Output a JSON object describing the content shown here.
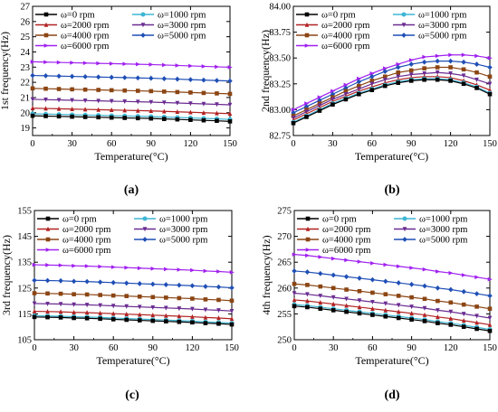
{
  "legend_entries": [
    "ω=0 rpm",
    "ω=1000 rpm",
    "ω=2000 rpm",
    "ω=3000 rpm",
    "ω=4000 rpm",
    "ω=5000 rpm",
    "ω=6000 rpm"
  ],
  "series_styles": [
    {
      "color": "#000000",
      "marker": "square"
    },
    {
      "color": "#3fb6d4",
      "marker": "circle"
    },
    {
      "color": "#b22222",
      "marker": "triangle-up"
    },
    {
      "color": "#6a2c91",
      "marker": "triangle-down"
    },
    {
      "color": "#8b4513",
      "marker": "square"
    },
    {
      "color": "#1f4fb5",
      "marker": "diamond"
    },
    {
      "color": "#a020f0",
      "marker": "triangle-right"
    }
  ],
  "chart_data": [
    {
      "type": "line",
      "panel_label": "(a)",
      "xlabel": "Temperature(°C)",
      "ylabel": "1st frequency(Hz)",
      "xlim": [
        0,
        150
      ],
      "ylim": [
        18.5,
        27
      ],
      "xticks": [
        0,
        30,
        60,
        90,
        120,
        150
      ],
      "yticks": [
        19,
        20,
        21,
        22,
        23,
        24,
        25,
        26,
        27
      ],
      "legend_position": "top",
      "x": [
        0,
        10,
        20,
        30,
        40,
        50,
        60,
        70,
        80,
        90,
        100,
        110,
        120,
        130,
        140,
        150
      ],
      "series": [
        {
          "name": "ω=0 rpm",
          "values": [
            19.8,
            19.78,
            19.76,
            19.74,
            19.72,
            19.7,
            19.68,
            19.66,
            19.64,
            19.62,
            19.59,
            19.56,
            19.53,
            19.5,
            19.47,
            19.43
          ]
        },
        {
          "name": "ω=1000 rpm",
          "values": [
            19.93,
            19.91,
            19.89,
            19.87,
            19.85,
            19.83,
            19.81,
            19.79,
            19.77,
            19.75,
            19.72,
            19.69,
            19.66,
            19.63,
            19.6,
            19.56
          ]
        },
        {
          "name": "ω=2000 rpm",
          "values": [
            20.3,
            20.28,
            20.26,
            20.24,
            20.22,
            20.2,
            20.18,
            20.16,
            20.14,
            20.12,
            20.09,
            20.06,
            20.03,
            20.0,
            19.97,
            19.94
          ]
        },
        {
          "name": "ω=3000 rpm",
          "values": [
            20.88,
            20.86,
            20.84,
            20.82,
            20.8,
            20.78,
            20.76,
            20.74,
            20.72,
            20.7,
            20.67,
            20.64,
            20.61,
            20.58,
            20.55,
            20.52
          ]
        },
        {
          "name": "ω=4000 rpm",
          "values": [
            21.6,
            21.58,
            21.56,
            21.54,
            21.52,
            21.5,
            21.48,
            21.46,
            21.44,
            21.42,
            21.39,
            21.36,
            21.33,
            21.3,
            21.27,
            21.24
          ]
        },
        {
          "name": "ω=5000 rpm",
          "values": [
            22.45,
            22.43,
            22.41,
            22.39,
            22.37,
            22.35,
            22.33,
            22.31,
            22.29,
            22.27,
            22.24,
            22.21,
            22.18,
            22.15,
            22.12,
            22.09
          ]
        },
        {
          "name": "ω=6000 rpm",
          "values": [
            23.35,
            23.33,
            23.31,
            23.29,
            23.27,
            23.25,
            23.23,
            23.21,
            23.19,
            23.17,
            23.14,
            23.11,
            23.08,
            23.05,
            23.02,
            22.99
          ]
        }
      ]
    },
    {
      "type": "line",
      "panel_label": "(b)",
      "xlabel": "Temperature(°C)",
      "ylabel": "2nd frequency(Hz)",
      "xlim": [
        0,
        150
      ],
      "ylim": [
        82.75,
        84.0
      ],
      "xticks": [
        0,
        30,
        60,
        90,
        120,
        150
      ],
      "yticks": [
        82.75,
        83.0,
        83.25,
        83.5,
        83.75,
        84.0
      ],
      "ytick_labels": [
        "82.75",
        "83.00",
        "83.25",
        "83.50",
        "83.75",
        "84.00"
      ],
      "legend_position": "top",
      "x": [
        0,
        10,
        20,
        30,
        40,
        50,
        60,
        70,
        80,
        90,
        100,
        110,
        120,
        130,
        140,
        150
      ],
      "series": [
        {
          "name": "ω=0 rpm",
          "values": [
            82.87,
            82.93,
            82.99,
            83.05,
            83.1,
            83.15,
            83.19,
            83.23,
            83.26,
            83.28,
            83.29,
            83.29,
            83.28,
            83.25,
            83.21,
            83.15
          ]
        },
        {
          "name": "ω=1000 rpm",
          "values": [
            82.88,
            82.94,
            83.0,
            83.06,
            83.11,
            83.16,
            83.2,
            83.24,
            83.27,
            83.29,
            83.3,
            83.3,
            83.29,
            83.26,
            83.22,
            83.16
          ]
        },
        {
          "name": "ω=2000 rpm",
          "values": [
            82.9,
            82.96,
            83.02,
            83.08,
            83.13,
            83.18,
            83.22,
            83.26,
            83.29,
            83.31,
            83.32,
            83.32,
            83.31,
            83.28,
            83.24,
            83.19
          ]
        },
        {
          "name": "ω=3000 rpm",
          "values": [
            82.92,
            82.98,
            83.04,
            83.1,
            83.15,
            83.2,
            83.25,
            83.29,
            83.32,
            83.34,
            83.35,
            83.36,
            83.35,
            83.33,
            83.29,
            83.25
          ]
        },
        {
          "name": "ω=4000 rpm",
          "values": [
            82.94,
            83.0,
            83.06,
            83.12,
            83.18,
            83.23,
            83.28,
            83.32,
            83.36,
            83.38,
            83.4,
            83.41,
            83.41,
            83.39,
            83.36,
            83.32
          ]
        },
        {
          "name": "ω=5000 rpm",
          "values": [
            82.97,
            83.03,
            83.09,
            83.15,
            83.21,
            83.27,
            83.32,
            83.37,
            83.41,
            83.44,
            83.46,
            83.47,
            83.47,
            83.46,
            83.44,
            83.41
          ]
        },
        {
          "name": "ω=6000 rpm",
          "values": [
            83.0,
            83.06,
            83.12,
            83.18,
            83.24,
            83.3,
            83.35,
            83.4,
            83.44,
            83.48,
            83.51,
            83.52,
            83.53,
            83.53,
            83.52,
            83.5
          ]
        }
      ]
    },
    {
      "type": "line",
      "panel_label": "(c)",
      "xlabel": "Temperature(°C)",
      "ylabel": "3rd frequency(Hz)",
      "xlim": [
        0,
        150
      ],
      "ylim": [
        105,
        155
      ],
      "xticks": [
        0,
        30,
        60,
        90,
        120,
        150
      ],
      "yticks": [
        105,
        115,
        125,
        135,
        145,
        155
      ],
      "legend_position": "top",
      "x": [
        0,
        10,
        20,
        30,
        40,
        50,
        60,
        70,
        80,
        90,
        100,
        110,
        120,
        130,
        140,
        150
      ],
      "series": [
        {
          "name": "ω=0 rpm",
          "values": [
            113.8,
            113.7,
            113.6,
            113.4,
            113.3,
            113.1,
            112.9,
            112.7,
            112.5,
            112.3,
            112.1,
            111.9,
            111.7,
            111.4,
            111.2,
            110.9
          ]
        },
        {
          "name": "ω=1000 rpm",
          "values": [
            114.3,
            114.2,
            114.1,
            113.9,
            113.8,
            113.6,
            113.4,
            113.2,
            113.0,
            112.8,
            112.6,
            112.4,
            112.2,
            111.9,
            111.7,
            111.4
          ]
        },
        {
          "name": "ω=2000 rpm",
          "values": [
            116.0,
            115.9,
            115.8,
            115.6,
            115.5,
            115.3,
            115.1,
            114.9,
            114.7,
            114.5,
            114.3,
            114.1,
            113.9,
            113.6,
            113.4,
            113.1
          ]
        },
        {
          "name": "ω=3000 rpm",
          "values": [
            119.0,
            118.9,
            118.8,
            118.6,
            118.5,
            118.3,
            118.1,
            117.9,
            117.7,
            117.5,
            117.3,
            117.1,
            116.9,
            116.6,
            116.4,
            116.1
          ]
        },
        {
          "name": "ω=4000 rpm",
          "values": [
            123.0,
            122.9,
            122.8,
            122.6,
            122.5,
            122.3,
            122.1,
            121.9,
            121.7,
            121.5,
            121.3,
            121.1,
            120.9,
            120.6,
            120.4,
            120.1
          ]
        },
        {
          "name": "ω=5000 rpm",
          "values": [
            128.0,
            127.9,
            127.8,
            127.6,
            127.5,
            127.3,
            127.1,
            126.9,
            126.7,
            126.5,
            126.3,
            126.1,
            125.9,
            125.6,
            125.4,
            125.1
          ]
        },
        {
          "name": "ω=6000 rpm",
          "values": [
            134.0,
            133.9,
            133.8,
            133.6,
            133.5,
            133.3,
            133.1,
            132.9,
            132.7,
            132.5,
            132.3,
            132.1,
            131.9,
            131.6,
            131.4,
            131.1
          ]
        }
      ]
    },
    {
      "type": "line",
      "panel_label": "(d)",
      "xlabel": "Temperature(°C)",
      "ylabel": "4th frequency(Hz)",
      "xlim": [
        0,
        150
      ],
      "ylim": [
        250,
        275
      ],
      "xticks": [
        0,
        30,
        60,
        90,
        120,
        150
      ],
      "yticks": [
        250,
        255,
        260,
        265,
        270,
        275
      ],
      "legend_position": "top",
      "x": [
        0,
        10,
        20,
        30,
        40,
        50,
        60,
        70,
        80,
        90,
        100,
        110,
        120,
        130,
        140,
        150
      ],
      "series": [
        {
          "name": "ω=0 rpm",
          "values": [
            256.5,
            256.3,
            256.0,
            255.7,
            255.4,
            255.1,
            254.8,
            254.5,
            254.2,
            253.9,
            253.6,
            253.2,
            252.9,
            252.5,
            252.1,
            251.7
          ]
        },
        {
          "name": "ω=1000 rpm",
          "values": [
            256.8,
            256.6,
            256.3,
            256.0,
            255.7,
            255.4,
            255.1,
            254.8,
            254.5,
            254.2,
            253.9,
            253.5,
            253.2,
            252.8,
            252.4,
            252.0
          ]
        },
        {
          "name": "ω=2000 rpm",
          "values": [
            257.7,
            257.5,
            257.2,
            256.9,
            256.6,
            256.3,
            256.0,
            255.7,
            255.4,
            255.1,
            254.8,
            254.4,
            254.1,
            253.7,
            253.3,
            252.9
          ]
        },
        {
          "name": "ω=3000 rpm",
          "values": [
            259.0,
            258.8,
            258.5,
            258.2,
            257.9,
            257.6,
            257.3,
            257.0,
            256.7,
            256.4,
            256.1,
            255.7,
            255.4,
            255.0,
            254.6,
            254.2
          ]
        },
        {
          "name": "ω=4000 rpm",
          "values": [
            260.8,
            260.6,
            260.3,
            260.0,
            259.7,
            259.4,
            259.1,
            258.8,
            258.5,
            258.2,
            257.9,
            257.5,
            257.2,
            256.8,
            256.4,
            256.0
          ]
        },
        {
          "name": "ω=5000 rpm",
          "values": [
            263.3,
            263.1,
            262.8,
            262.5,
            262.2,
            261.9,
            261.6,
            261.3,
            261.0,
            260.7,
            260.4,
            260.0,
            259.7,
            259.3,
            258.9,
            258.5
          ]
        },
        {
          "name": "ω=6000 rpm",
          "values": [
            266.5,
            266.3,
            266.0,
            265.7,
            265.4,
            265.1,
            264.8,
            264.5,
            264.2,
            263.9,
            263.6,
            263.2,
            262.9,
            262.5,
            262.1,
            261.7
          ]
        }
      ]
    }
  ]
}
